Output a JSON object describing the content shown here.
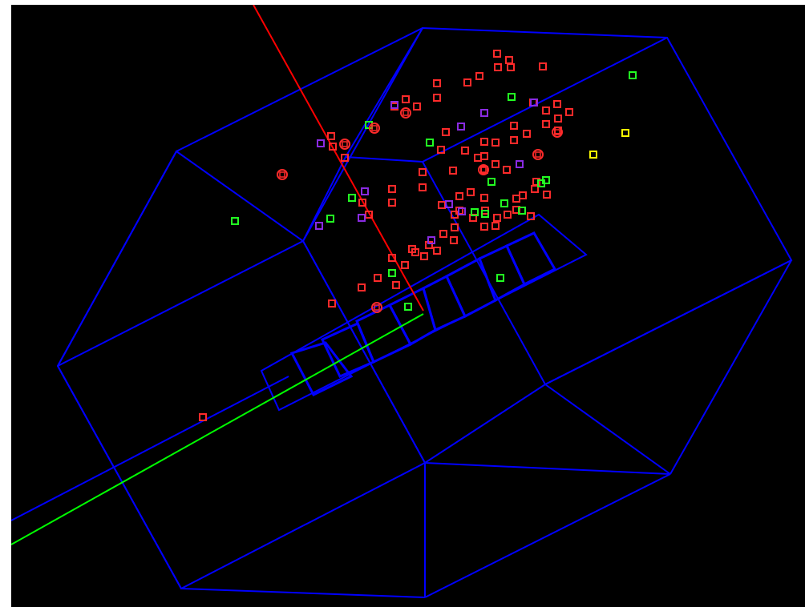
{
  "scene": {
    "background": "#000000",
    "frame_color": "#0000ff",
    "beam_primary_color": "#00ff00",
    "beam_secondary_color": "#0000ff",
    "track_color": "#ff0000"
  },
  "hits": {
    "red": {
      "color": "#ff2a2a",
      "count": 86
    },
    "green": {
      "color": "#22ff22",
      "count": 17
    },
    "purple": {
      "color": "#8a2be2",
      "count": 11
    },
    "yellow": {
      "color": "#ffff00",
      "count": 2
    },
    "ringed_red": {
      "color": "#ff2a2a",
      "count": 8
    }
  }
}
